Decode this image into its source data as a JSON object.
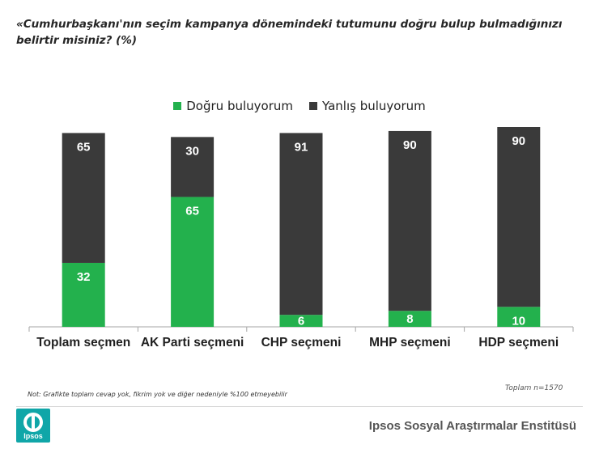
{
  "header": {
    "title": "«Cumhurbaşkanı'nın seçim kampanya dönemindeki  tutumunu doğru  bulup bulmadığınızı belirtir misiniz? (%)"
  },
  "colors": {
    "correct": "#23b14d",
    "wrong": "#3a3a3a",
    "label_text": "#ffffff"
  },
  "chart_data": {
    "type": "bar",
    "stacked": true,
    "categories": [
      "Toplam seçmen",
      "AK Parti seçmeni",
      "CHP seçmeni",
      "MHP seçmeni",
      "HDP seçmeni"
    ],
    "series": [
      {
        "name": "Doğru buluyorum",
        "values": [
          32,
          65,
          6,
          8,
          10
        ]
      },
      {
        "name": "Yanlış buluyorum",
        "values": [
          65,
          30,
          91,
          90,
          90
        ]
      }
    ],
    "ylim": [
      0,
      100
    ],
    "legend_position": "top",
    "grid": false
  },
  "footer": {
    "note": "Not: Grafikte toplam cevap yok, fikrim yok ve diğer nedeniyle %100 etmeyebilir",
    "total": "Toplam n=1570",
    "logo_text": "Ipsos",
    "org_name": "Ipsos Sosyal Araştırmalar Enstitüsü"
  }
}
